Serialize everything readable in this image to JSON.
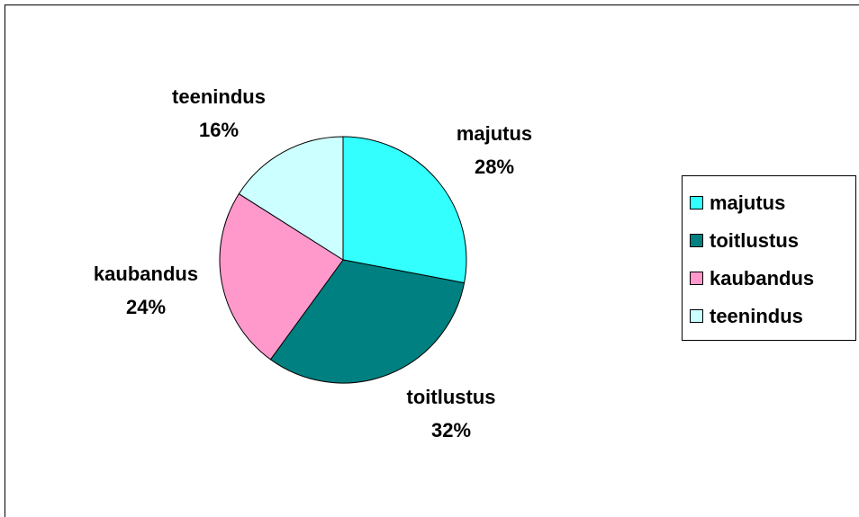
{
  "chart_data": {
    "type": "pie",
    "categories": [
      "majutus",
      "toitlustus",
      "kaubandus",
      "teenindus"
    ],
    "values": [
      28,
      32,
      24,
      16
    ],
    "value_labels": [
      "28%",
      "32%",
      "24%",
      "16%"
    ],
    "colors": [
      "#33ffff",
      "#008080",
      "#ff99cc",
      "#ccffff"
    ],
    "legend": "right"
  }
}
